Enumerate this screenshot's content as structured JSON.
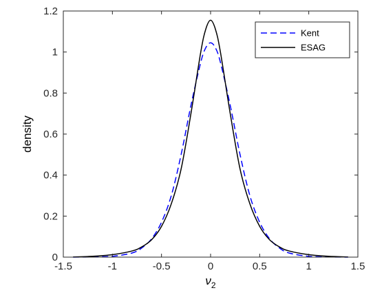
{
  "chart_data": {
    "type": "line",
    "xlabel_base": "ν",
    "xlabel_sub": "2",
    "ylabel": "density",
    "xlim": [
      -1.5,
      1.5
    ],
    "ylim": [
      0,
      1.2
    ],
    "xticks": [
      -1.5,
      -1,
      -0.5,
      0,
      0.5,
      1,
      1.5
    ],
    "yticks": [
      0,
      0.2,
      0.4,
      0.6,
      0.8,
      1,
      1.2
    ],
    "xtick_labels": [
      "-1.5",
      "-1",
      "-0.5",
      "0",
      "0.5",
      "1",
      "1.5"
    ],
    "ytick_labels": [
      "0",
      "0.2",
      "0.4",
      "0.6",
      "0.8",
      "1",
      "1.2"
    ],
    "grid": false,
    "legend_position": "top-right",
    "series": [
      {
        "name": "Kent",
        "color": "#0000ff",
        "style": "dashed",
        "x": [
          -1.4,
          -1.2,
          -1.0,
          -0.8,
          -0.7,
          -0.6,
          -0.5,
          -0.4,
          -0.3,
          -0.2,
          -0.1,
          -0.05,
          0,
          0.05,
          0.1,
          0.2,
          0.3,
          0.4,
          0.5,
          0.6,
          0.7,
          0.8,
          1.0,
          1.2,
          1.4
        ],
        "y": [
          0.0,
          0.001,
          0.004,
          0.02,
          0.045,
          0.09,
          0.17,
          0.3,
          0.5,
          0.74,
          0.95,
          1.02,
          1.045,
          1.02,
          0.95,
          0.74,
          0.5,
          0.3,
          0.17,
          0.09,
          0.045,
          0.02,
          0.004,
          0.001,
          0.0
        ]
      },
      {
        "name": "ESAG",
        "color": "#000000",
        "style": "solid",
        "x": [
          -1.4,
          -1.2,
          -1.0,
          -0.8,
          -0.7,
          -0.6,
          -0.5,
          -0.4,
          -0.3,
          -0.2,
          -0.1,
          -0.05,
          0,
          0.05,
          0.1,
          0.2,
          0.3,
          0.4,
          0.5,
          0.6,
          0.7,
          0.8,
          1.0,
          1.2,
          1.4
        ],
        "y": [
          0.001,
          0.004,
          0.012,
          0.03,
          0.05,
          0.085,
          0.15,
          0.26,
          0.43,
          0.7,
          1.0,
          1.11,
          1.155,
          1.11,
          1.0,
          0.7,
          0.43,
          0.26,
          0.15,
          0.085,
          0.05,
          0.03,
          0.012,
          0.004,
          0.001
        ]
      }
    ]
  }
}
